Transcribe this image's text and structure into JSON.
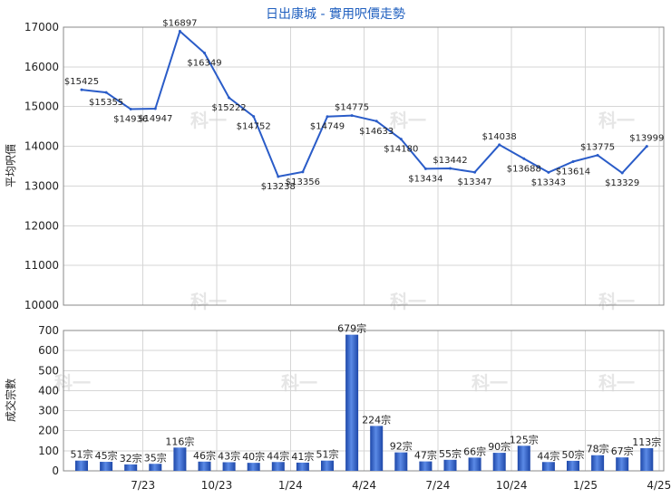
{
  "chart_data": [
    {
      "type": "line",
      "title": "日出康城 - 實用呎價走勢",
      "ylabel": "平均呎價",
      "ylim": [
        10000,
        17000
      ],
      "yticks": [
        10000,
        11000,
        12000,
        13000,
        14000,
        15000,
        16000,
        17000
      ],
      "color": "#2a5cc8",
      "grid": true,
      "values": [
        15425,
        15355,
        14936,
        14947,
        16897,
        16349,
        15222,
        14752,
        13238,
        13356,
        14749,
        14775,
        14633,
        14180,
        13434,
        13442,
        13347,
        14038,
        13688,
        13343,
        13614,
        13775,
        13329,
        13999
      ],
      "point_labels": [
        "$15425",
        "$15355",
        "$14936",
        "$14947",
        "$16897",
        "$16349",
        "$15222",
        "$14752",
        "$13238",
        "$13356",
        "$14749",
        "$14775",
        "$14633",
        "$14180",
        "$13434",
        "$13442",
        "$13347",
        "$14038",
        "$13688",
        "$13343",
        "$13614",
        "$13775",
        "$13329",
        "$13999"
      ]
    },
    {
      "type": "bar",
      "ylabel": "成交宗數",
      "ylim": [
        0,
        700
      ],
      "yticks": [
        0,
        100,
        200,
        300,
        400,
        500,
        600,
        700
      ],
      "color": "#2a5cc8",
      "grid": true,
      "values": [
        51,
        45,
        32,
        35,
        116,
        46,
        43,
        40,
        44,
        41,
        51,
        679,
        224,
        92,
        47,
        55,
        66,
        90,
        125,
        44,
        50,
        78,
        67,
        113
      ],
      "bar_labels": [
        "51宗",
        "45宗",
        "32宗",
        "35宗",
        "116宗",
        "46宗",
        "43宗",
        "40宗",
        "44宗",
        "41宗",
        "51宗",
        "679宗",
        "224宗",
        "92宗",
        "47宗",
        "55宗",
        "66宗",
        "90宗",
        "125宗",
        "44宗",
        "50宗",
        "78宗",
        "67宗",
        "113宗"
      ],
      "x_tick_labels": [
        "7/23",
        "10/23",
        "1/24",
        "4/24",
        "7/24",
        "10/24",
        "1/25",
        "4/25"
      ]
    }
  ],
  "watermark": "科一"
}
